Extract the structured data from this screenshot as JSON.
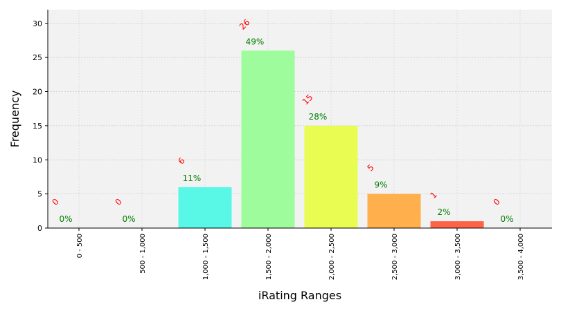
{
  "chart_data": {
    "type": "bar",
    "xlabel": "iRating Ranges",
    "ylabel": "Frequency",
    "categories": [
      "0 - 500",
      "500 - 1,000",
      "1,000 - 1,500",
      "1,500 - 2,000",
      "2,000 - 2,500",
      "2,500 - 3,000",
      "3,000 - 3,500",
      "3,500 - 4,000"
    ],
    "values": [
      0,
      0,
      6,
      26,
      15,
      5,
      1,
      0
    ],
    "count_labels": [
      "0",
      "0",
      "6",
      "26",
      "15",
      "5",
      "1",
      "0"
    ],
    "percent_labels": [
      "0%",
      "0%",
      "11%",
      "49%",
      "28%",
      "9%",
      "2%",
      "0%"
    ],
    "bar_colors": [
      "#ff6347",
      "#ff6347",
      "#59f8e6",
      "#9ffc9c",
      "#e8fc52",
      "#ffb04c",
      "#ff6347",
      "#ff6347"
    ],
    "ylim": [
      0,
      32
    ],
    "yticks": [
      "0",
      "5",
      "10",
      "15",
      "20",
      "25",
      "30"
    ],
    "grid": true,
    "plot_background": "#f2f2f2",
    "count_label_color": "#ff0000",
    "percent_label_color": "#008000"
  }
}
